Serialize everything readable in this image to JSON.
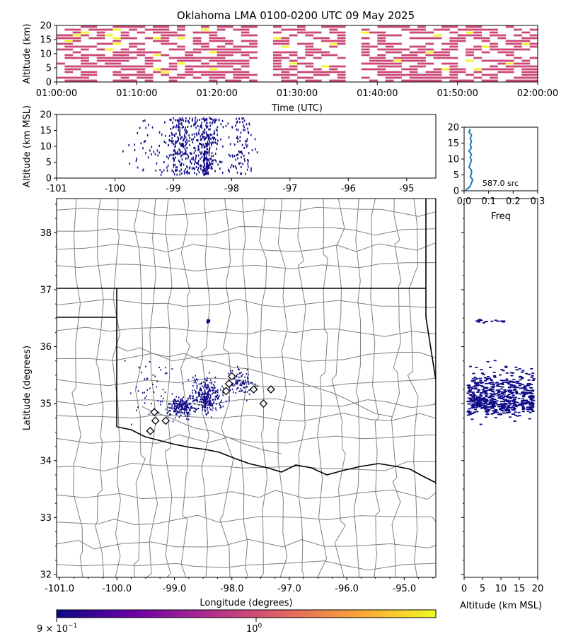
{
  "chart_data": [
    {
      "id": "time_height",
      "type": "heatmap",
      "title": "Oklahoma LMA 0100-0200 UTC 09 May 2025",
      "xlabel": "Time (UTC)",
      "ylabel": "Altitude (km)",
      "xlim_minutes": [
        0,
        60
      ],
      "ylim": [
        0,
        20
      ],
      "xticks": [
        "01:00:00",
        "01:10:00",
        "01:20:00",
        "01:30:00",
        "01:40:00",
        "01:50:00",
        "02:00:00"
      ],
      "yticks": [
        "0",
        "5",
        "10",
        "15",
        "20"
      ],
      "cell_minutes": 1,
      "cell_km": 1,
      "colors": {
        "low": "#cc4778",
        "high": "#f0f921"
      },
      "busy_minutes": [
        [
          0,
          25
        ],
        [
          27,
          36
        ],
        [
          38,
          60
        ]
      ],
      "yellow_cells": [
        [
          1,
          14
        ],
        [
          2,
          16
        ],
        [
          3,
          17
        ],
        [
          6,
          16
        ],
        [
          6,
          11
        ],
        [
          7,
          15
        ],
        [
          7,
          13
        ],
        [
          7,
          18
        ],
        [
          12,
          4
        ],
        [
          12,
          9
        ],
        [
          12,
          15
        ],
        [
          13,
          3
        ],
        [
          15,
          6
        ],
        [
          15,
          15
        ],
        [
          18,
          18
        ],
        [
          19,
          10
        ],
        [
          19,
          4
        ],
        [
          25,
          7
        ],
        [
          27,
          15
        ],
        [
          28,
          12
        ],
        [
          29,
          6
        ],
        [
          33,
          5
        ],
        [
          34,
          13
        ],
        [
          37,
          19
        ],
        [
          38,
          17
        ],
        [
          42,
          7
        ],
        [
          46,
          10
        ],
        [
          47,
          16
        ],
        [
          48,
          4
        ],
        [
          51,
          17
        ],
        [
          51,
          7
        ],
        [
          52,
          4
        ],
        [
          53,
          12
        ],
        [
          56,
          6
        ],
        [
          58,
          13
        ]
      ]
    },
    {
      "id": "lon_alt",
      "type": "scatter",
      "ylabel": "Altitude (km MSL)",
      "xlim": [
        -101,
        -94.5
      ],
      "ylim": [
        0,
        20
      ],
      "xticks": [
        -101,
        -100,
        -99,
        -98,
        -97,
        -96,
        -95
      ],
      "yticks": [
        0,
        5,
        10,
        15,
        20
      ],
      "point_color": "#0d0887"
    },
    {
      "id": "alt_hist",
      "type": "line",
      "xlabel": "Freq",
      "xlim": [
        0,
        0.3
      ],
      "ylim": [
        0,
        20
      ],
      "xticks": [
        "0.0",
        "0.1",
        "0.2",
        "0.3"
      ],
      "yticks": [
        "0",
        "5",
        "10",
        "15",
        "20"
      ],
      "annotation": "587.0 src",
      "line_color": "#1f77b4",
      "profile": [
        [
          0.005,
          0
        ],
        [
          0.01,
          0.5
        ],
        [
          0.02,
          1
        ],
        [
          0.025,
          1.5
        ],
        [
          0.03,
          2.5
        ],
        [
          0.035,
          3.5
        ],
        [
          0.025,
          4.5
        ],
        [
          0.03,
          5.5
        ],
        [
          0.03,
          6.5
        ],
        [
          0.02,
          7.5
        ],
        [
          0.025,
          8.5
        ],
        [
          0.03,
          9.5
        ],
        [
          0.025,
          10.5
        ],
        [
          0.03,
          11.5
        ],
        [
          0.02,
          12.5
        ],
        [
          0.03,
          13.5
        ],
        [
          0.025,
          14.5
        ],
        [
          0.03,
          15.5
        ],
        [
          0.025,
          16.5
        ],
        [
          0.03,
          17.5
        ],
        [
          0.02,
          18.5
        ],
        [
          0.025,
          19.5
        ]
      ]
    },
    {
      "id": "plan_view",
      "type": "scatter",
      "xlabel": "Longitude (degrees)",
      "ylabel": "Latitude (degrees)",
      "xlim": [
        -101.05,
        -94.45
      ],
      "ylim": [
        31.95,
        38.6
      ],
      "xticks": [
        "-101.0",
        "-100.0",
        "-99.0",
        "-98.0",
        "-97.0",
        "-96.0",
        "-95.0"
      ],
      "yticks": [
        "32",
        "33",
        "34",
        "35",
        "36",
        "37",
        "38"
      ],
      "point_color": "#0d0887",
      "stations": [
        [
          -98.0,
          35.48
        ],
        [
          -98.05,
          35.35
        ],
        [
          -98.1,
          35.22
        ],
        [
          -97.62,
          35.25
        ],
        [
          -97.32,
          35.25
        ],
        [
          -97.45,
          35.0
        ],
        [
          -99.35,
          34.85
        ],
        [
          -99.33,
          34.7
        ],
        [
          -99.15,
          34.7
        ],
        [
          -99.42,
          34.52
        ]
      ]
    },
    {
      "id": "alt_lat",
      "type": "scatter",
      "xlabel": "Altitude (km MSL)",
      "xlim": [
        0,
        20
      ],
      "ylim": [
        31.95,
        38.6
      ],
      "xticks": [
        0,
        5,
        10,
        15,
        20
      ],
      "point_color": "#0d0887"
    },
    {
      "id": "colorbar",
      "type": "colorbar",
      "scale": "log",
      "tick_labels": [
        "9 × 10",
        "−1",
        "10",
        "0"
      ],
      "colors": [
        "#0d0887",
        "#6a00a8",
        "#b12a90",
        "#e16462",
        "#fca636",
        "#f0f921"
      ]
    }
  ]
}
